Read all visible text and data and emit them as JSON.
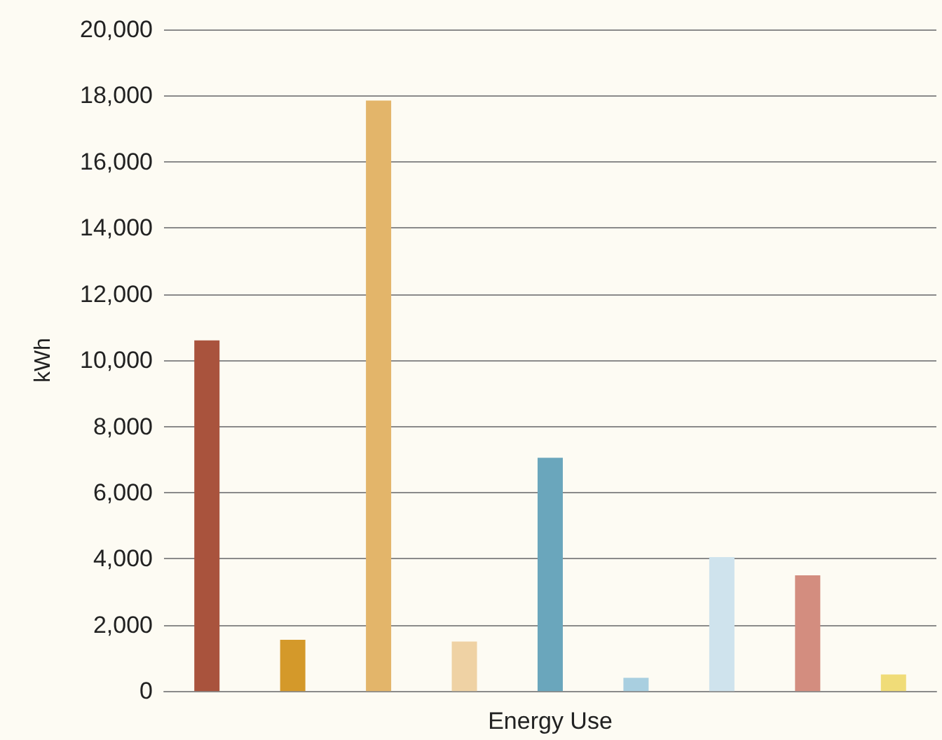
{
  "chart_data": {
    "type": "bar",
    "xlabel": "Energy Use",
    "ylabel": "kWh",
    "categories": [
      null,
      null,
      null,
      null,
      null,
      null,
      null,
      null,
      null
    ],
    "values": [
      10600,
      1550,
      17850,
      1500,
      7050,
      400,
      4050,
      3500,
      500
    ],
    "colors": [
      "#a9533d",
      "#d4992a",
      "#e3b56a",
      "#efd2a4",
      "#6aa6bc",
      "#a9cfe0",
      "#cfe3ed",
      "#d38d7f",
      "#f0dc78"
    ],
    "ylim": [
      0,
      20000
    ],
    "yticks": [
      0,
      {
        "value": 2000,
        "label": "2,000"
      },
      {
        "value": 4000,
        "label": "4,000"
      },
      {
        "value": 6000,
        "label": "6,000"
      },
      {
        "value": 8000,
        "label": "8,000"
      },
      {
        "value": 10000,
        "label": "10,000"
      },
      {
        "value": 12000,
        "label": "12,000"
      },
      {
        "value": 14000,
        "label": "14,000"
      },
      {
        "value": 16000,
        "label": "16,000"
      },
      {
        "value": 18000,
        "label": "18,000"
      },
      {
        "value": 20000,
        "label": "20,000"
      }
    ],
    "grid": "y"
  }
}
